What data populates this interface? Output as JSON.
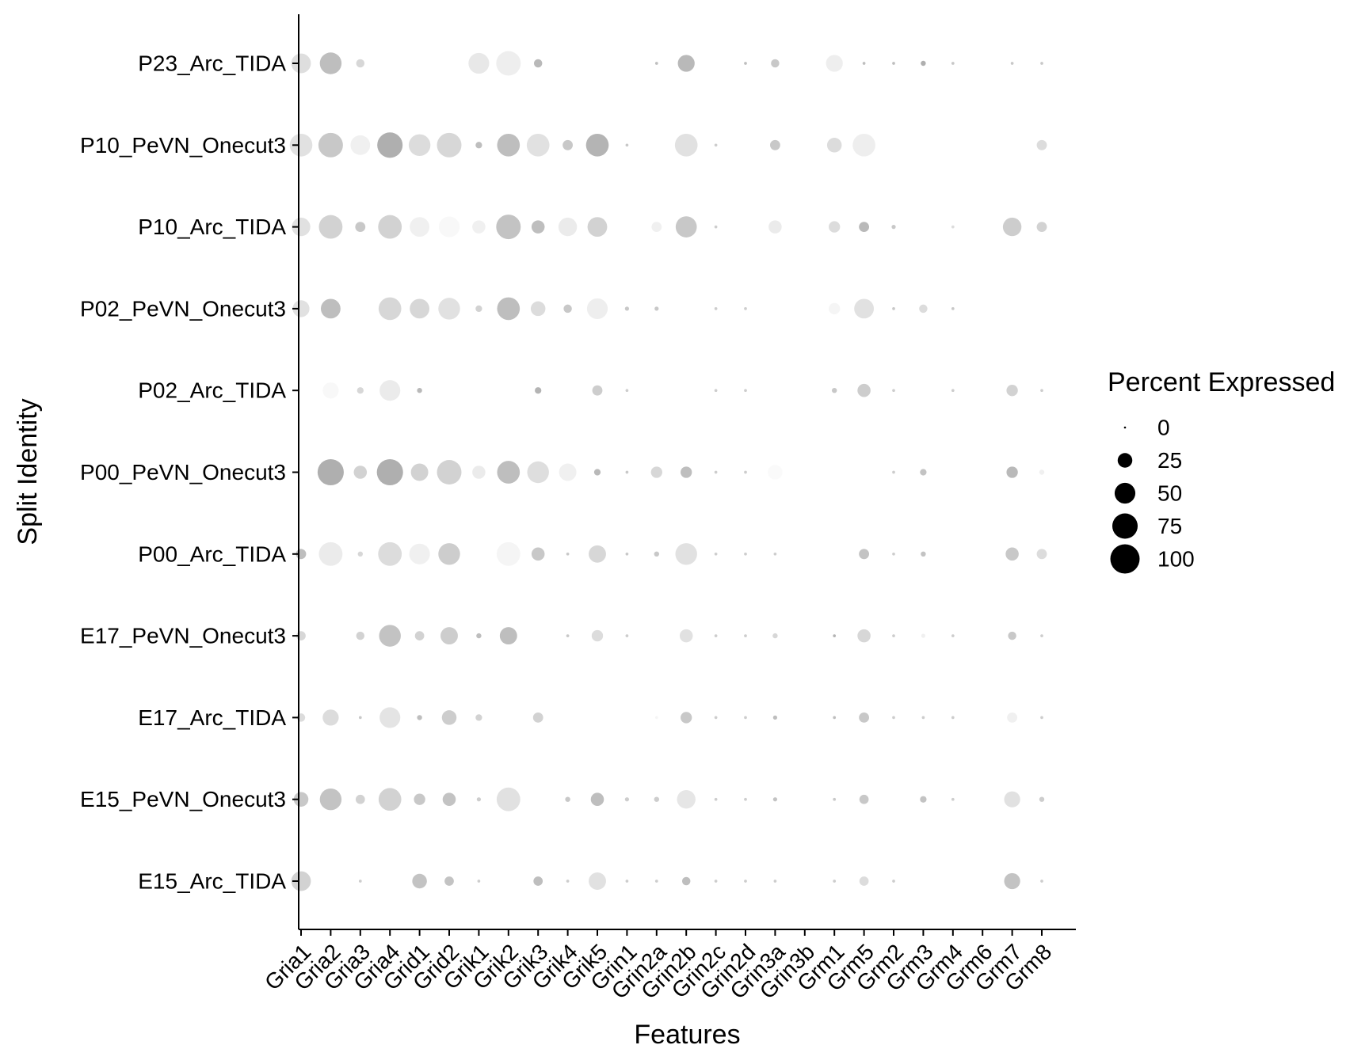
{
  "chart_data": {
    "type": "dot",
    "title": "",
    "xlabel": "Features",
    "ylabel": "Split Identity",
    "features": [
      "Gria1",
      "Gria2",
      "Gria3",
      "Gria4",
      "Grid1",
      "Grid2",
      "Grik1",
      "Grik2",
      "Grik3",
      "Grik4",
      "Grik5",
      "Grin1",
      "Grin2a",
      "Grin2b",
      "Grin2c",
      "Grin2d",
      "Grin3a",
      "Grin3b",
      "Grm1",
      "Grm5",
      "Grm2",
      "Grm3",
      "Grm4",
      "Grm6",
      "Grm7",
      "Grm8"
    ],
    "identities": [
      "P23_Arc_TIDA",
      "P10_PeVN_Onecut3",
      "P10_Arc_TIDA",
      "P02_PeVN_Onecut3",
      "P02_Arc_TIDA",
      "P00_PeVN_Onecut3",
      "P00_Arc_TIDA",
      "E17_PeVN_Onecut3",
      "E17_Arc_TIDA",
      "E15_PeVN_Onecut3",
      "E15_Arc_TIDA"
    ],
    "size_legend": {
      "title": "Percent Expressed",
      "values": [
        0,
        25,
        50,
        75,
        100
      ],
      "labels": [
        "0",
        "25",
        "50",
        "75",
        "100"
      ]
    },
    "dot_color_scale": "grey shades (average expression)",
    "rows": [
      {
        "pct": [
          45,
          55,
          8,
          0,
          0,
          0,
          50,
          70,
          8,
          0,
          0,
          0,
          1,
          33,
          0,
          1,
          8,
          0,
          33,
          1,
          1,
          3,
          1,
          0,
          1,
          1
        ],
        "gray": [
          222,
          190,
          215,
          0,
          0,
          0,
          232,
          238,
          185,
          0,
          0,
          0,
          190,
          185,
          0,
          190,
          200,
          0,
          238,
          190,
          190,
          175,
          200,
          0,
          200,
          200
        ]
      },
      {
        "pct": [
          60,
          70,
          45,
          75,
          55,
          70,
          5,
          60,
          60,
          12,
          60,
          1,
          0,
          60,
          1,
          0,
          12,
          0,
          25,
          60,
          0,
          0,
          0,
          0,
          0,
          12
        ],
        "gray": [
          225,
          200,
          240,
          175,
          220,
          215,
          190,
          190,
          225,
          200,
          180,
          200,
          0,
          225,
          205,
          0,
          200,
          0,
          220,
          238,
          0,
          0,
          0,
          0,
          0,
          220
        ]
      },
      {
        "pct": [
          40,
          65,
          12,
          65,
          45,
          50,
          20,
          70,
          20,
          40,
          45,
          0,
          12,
          52,
          1,
          0,
          20,
          0,
          15,
          12,
          2,
          0,
          1,
          0,
          40,
          12
        ],
        "gray": [
          225,
          210,
          200,
          210,
          240,
          248,
          240,
          195,
          190,
          235,
          210,
          0,
          240,
          200,
          205,
          0,
          235,
          0,
          220,
          185,
          200,
          0,
          220,
          0,
          205,
          210
        ]
      },
      {
        "pct": [
          33,
          45,
          0,
          60,
          45,
          55,
          5,
          60,
          25,
          8,
          50,
          2,
          2,
          0,
          1,
          1,
          0,
          0,
          15,
          45,
          1,
          8,
          1,
          0,
          0,
          0
        ],
        "gray": [
          225,
          190,
          0,
          215,
          215,
          225,
          210,
          190,
          220,
          200,
          238,
          200,
          200,
          0,
          205,
          205,
          0,
          0,
          245,
          225,
          200,
          220,
          200,
          0,
          0,
          0
        ]
      },
      {
        "pct": [
          0,
          30,
          5,
          50,
          3,
          0,
          0,
          0,
          5,
          0,
          12,
          1,
          0,
          0,
          1,
          1,
          0,
          0,
          3,
          20,
          1,
          0,
          1,
          0,
          15,
          1
        ],
        "gray": [
          0,
          248,
          215,
          235,
          185,
          0,
          0,
          0,
          180,
          0,
          205,
          205,
          0,
          0,
          205,
          205,
          0,
          0,
          200,
          205,
          205,
          0,
          205,
          0,
          210,
          205
        ]
      },
      {
        "pct": [
          0,
          80,
          20,
          80,
          35,
          70,
          20,
          60,
          55,
          35,
          5,
          1,
          15,
          15,
          1,
          1,
          25,
          0,
          0,
          0,
          1,
          5,
          0,
          0,
          15,
          3
        ],
        "gray": [
          0,
          175,
          210,
          175,
          210,
          210,
          235,
          190,
          222,
          240,
          185,
          200,
          215,
          190,
          205,
          205,
          250,
          0,
          0,
          0,
          205,
          195,
          0,
          0,
          185,
          240
        ]
      },
      {
        "pct": [
          12,
          65,
          3,
          65,
          50,
          55,
          0,
          65,
          20,
          1,
          35,
          1,
          3,
          55,
          1,
          1,
          1,
          0,
          0,
          12,
          1,
          3,
          0,
          0,
          20,
          12
        ],
        "gray": [
          190,
          235,
          215,
          220,
          240,
          205,
          0,
          245,
          200,
          200,
          215,
          200,
          200,
          225,
          205,
          205,
          205,
          0,
          0,
          195,
          205,
          195,
          0,
          0,
          200,
          220
        ]
      },
      {
        "pct": [
          10,
          0,
          8,
          55,
          10,
          35,
          3,
          35,
          0,
          1,
          15,
          1,
          0,
          20,
          1,
          1,
          3,
          0,
          1,
          20,
          1,
          2,
          1,
          0,
          8,
          1
        ],
        "gray": [
          215,
          0,
          210,
          195,
          210,
          205,
          190,
          190,
          0,
          200,
          220,
          205,
          250,
          225,
          205,
          205,
          215,
          0,
          180,
          215,
          205,
          240,
          205,
          0,
          200,
          205
        ]
      },
      {
        "pct": [
          8,
          30,
          1,
          50,
          3,
          25,
          5,
          0,
          12,
          0,
          0,
          0,
          1,
          15,
          1,
          1,
          2,
          0,
          1,
          12,
          1,
          1,
          1,
          0,
          12,
          1
        ],
        "gray": [
          220,
          220,
          200,
          228,
          190,
          205,
          210,
          0,
          210,
          0,
          0,
          0,
          245,
          200,
          205,
          205,
          190,
          0,
          190,
          200,
          205,
          205,
          205,
          0,
          240,
          205
        ]
      },
      {
        "pct": [
          25,
          55,
          10,
          60,
          15,
          20,
          2,
          65,
          0,
          3,
          20,
          2,
          3,
          40,
          1,
          1,
          2,
          0,
          1,
          10,
          0,
          5,
          1,
          0,
          30,
          3
        ],
        "gray": [
          200,
          195,
          210,
          210,
          200,
          195,
          205,
          225,
          0,
          200,
          190,
          205,
          205,
          230,
          205,
          205,
          195,
          0,
          200,
          200,
          0,
          195,
          205,
          0,
          225,
          205
        ]
      },
      {
        "pct": [
          45,
          0,
          1,
          0,
          25,
          10,
          1,
          0,
          10,
          1,
          35,
          1,
          1,
          8,
          1,
          1,
          1,
          0,
          1,
          10,
          1,
          0,
          0,
          0,
          30,
          1
        ],
        "gray": [
          210,
          0,
          205,
          0,
          195,
          195,
          205,
          0,
          190,
          205,
          225,
          205,
          205,
          190,
          205,
          205,
          205,
          0,
          205,
          220,
          205,
          0,
          0,
          0,
          195,
          205
        ]
      }
    ]
  }
}
